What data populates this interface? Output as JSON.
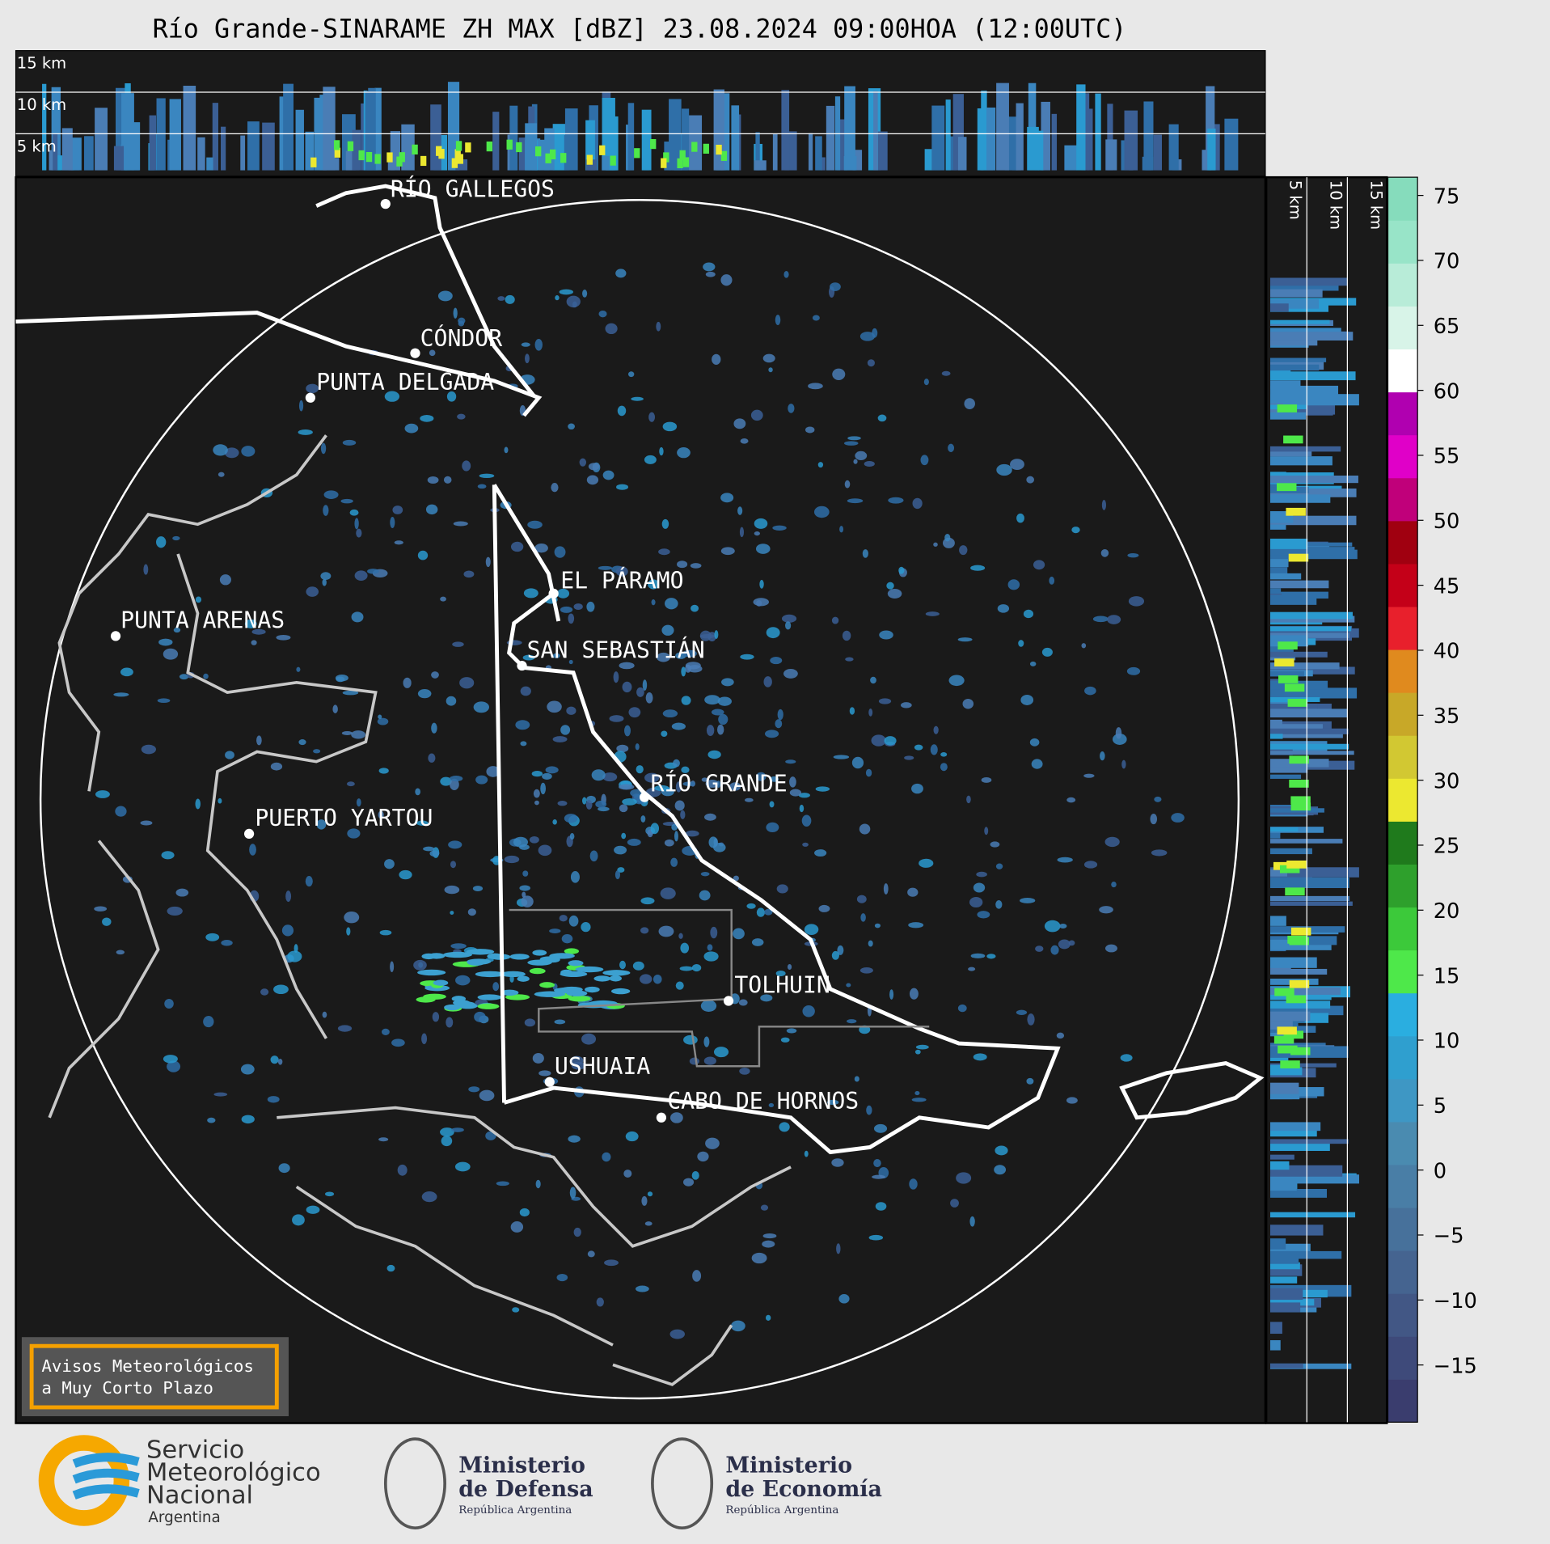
{
  "header": {
    "title": "Río Grande-SINARAME ZH MAX [dBZ] 23.08.2024 09:00HOA (12:00UTC)"
  },
  "top_panel": {
    "levels": [
      "15 km",
      "10 km",
      "5 km"
    ]
  },
  "side_panel": {
    "levels": [
      "5 km",
      "10 km",
      "15 km"
    ]
  },
  "map": {
    "places": [
      "RÍO GALLEGOS",
      "CÓNDOR",
      "PUNTA DELGADA",
      "EL PÁRAMO",
      "PUNTA ARENAS",
      "SAN SEBASTIÁN",
      "RÍO GRANDE",
      "PUERTO YARTOU",
      "TOLHUIN",
      "USHUAIA",
      "CABO DE HORNOS"
    ]
  },
  "colorbar": {
    "clim": [
      -19.4,
      76.4
    ],
    "colors": [
      "#3a3d6e",
      "#3e4a7a",
      "#425785",
      "#456490",
      "#47719b",
      "#497ea6",
      "#4a8bb0",
      "#3e97c4",
      "#2f9fcf",
      "#2aaee0",
      "#4ee84a",
      "#3cc93a",
      "#2ea02c",
      "#1f7a1c",
      "#ece830",
      "#d2c832",
      "#c8a828",
      "#e08a1e",
      "#e8202c",
      "#c40018",
      "#a00010",
      "#c0007a",
      "#e000c8",
      "#b000b0",
      "#ffffff",
      "#d8f4e8",
      "#b8ecd8",
      "#98e4c8",
      "#86dcbc"
    ],
    "ticks": [
      {
        "value": -15,
        "label": "−15"
      },
      {
        "value": -10,
        "label": "−10"
      },
      {
        "value": -5,
        "label": "−5"
      },
      0,
      5,
      10,
      15,
      20,
      25,
      30,
      35,
      40,
      45,
      50,
      55,
      60,
      65,
      70,
      75
    ]
  },
  "notice": {
    "lines": [
      "Avisos Meteorológicos",
      "a Muy Corto Plazo"
    ]
  },
  "footer": {
    "smn": [
      "Servicio",
      "Meteorológico",
      "Nacional",
      "Argentina"
    ],
    "defensa": [
      "Ministerio",
      "de Defensa",
      "República Argentina"
    ],
    "economia": [
      "Ministerio",
      "de Economía",
      "República Argentina"
    ]
  }
}
